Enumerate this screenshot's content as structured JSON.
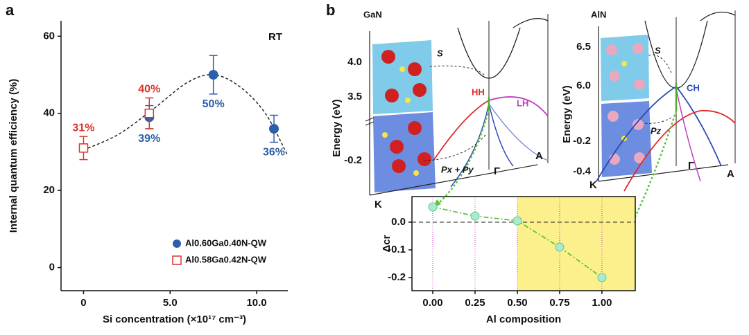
{
  "panel_labels": [
    "a",
    "b"
  ],
  "chart_data": [
    {
      "type": "scatter",
      "ylabel": "Internal quantum efficiency (%)",
      "xlabel": "Si concentration (×10¹⁷ cm⁻³)",
      "annotation": "RT",
      "xlim": [
        -1.3,
        11.8
      ],
      "xticks": [
        0,
        {
          "value": 5,
          "label": "5.0"
        },
        {
          "value": 10,
          "label": "10.0"
        }
      ],
      "ylim": [
        -6,
        64
      ],
      "yticks": [
        0,
        20,
        40,
        60
      ],
      "legend": "lower right",
      "series": [
        {
          "name": "Al0.60Ga0.40N-QW",
          "color": "#2c5fa8",
          "marker": "circle",
          "label_position": "below",
          "x": [
            3.8,
            7.5,
            11.0
          ],
          "values": [
            39,
            50,
            36
          ],
          "errors": [
            3,
            5,
            3.5
          ],
          "value_labels": [
            "39%",
            "50%",
            "36%"
          ]
        },
        {
          "name": "Al0.58Ga0.42N-QW",
          "color": "#d9342b",
          "marker": "square-open",
          "label_position": "above",
          "x": [
            0,
            3.8
          ],
          "values": [
            31,
            40
          ],
          "errors": [
            3,
            4
          ],
          "value_labels": [
            "31%",
            "40%"
          ]
        }
      ],
      "curve": {
        "x": [
          0,
          2,
          4,
          6,
          7.5,
          9,
          10.5,
          11.8
        ],
        "y": [
          30.5,
          34.5,
          41,
          48,
          50,
          47,
          40,
          29
        ],
        "color": "#222222"
      }
    },
    {
      "type": "line",
      "ylabel": "Δcr",
      "xlabel": "Al composition",
      "xlim": [
        -0.123,
        1.197
      ],
      "xticks": [
        {
          "value": 0,
          "label": "0.00"
        },
        {
          "value": 0.25,
          "label": "0.25"
        },
        {
          "value": 0.5,
          "label": "0.50"
        },
        {
          "value": 0.75,
          "label": "0.75"
        },
        {
          "value": 1,
          "label": "1.00"
        }
      ],
      "ylim": [
        -0.2475,
        0.0925
      ],
      "yticks": [
        {
          "value": 0,
          "label": "0.0"
        },
        -0.1,
        -0.2
      ],
      "x": [
        0,
        0.25,
        0.5,
        0.75,
        1
      ],
      "values": [
        0.055,
        0.022,
        0.005,
        -0.09,
        -0.2
      ],
      "color": "#5cc43a",
      "marker_color": "#a8ecd0",
      "reference_line": 0,
      "guide_color": "#c23ac2",
      "shaded_from": 0.5,
      "shade_color": "#fbf08c"
    }
  ],
  "band_diagrams": [
    {
      "material": "GaN",
      "energy_ticks": [
        "4.0",
        "3.5",
        "-0.2"
      ],
      "ylabel": "Energy (eV)",
      "state_label": "S",
      "bands": [
        "HH",
        "LH"
      ],
      "orbital": "Px + Py",
      "k_points": [
        "K",
        "Γ",
        "A"
      ]
    },
    {
      "material": "AlN",
      "energy_ticks": [
        "6.5",
        "6.0",
        "-0.2",
        "-0.4"
      ],
      "ylabel": "Energy (eV)",
      "state_label": "S",
      "bands": [
        "CH"
      ],
      "orbital": "Pz",
      "k_points": [
        "K",
        "Γ",
        "A"
      ]
    }
  ]
}
